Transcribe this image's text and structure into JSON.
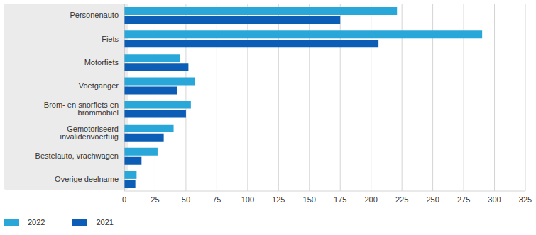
{
  "chart_data": {
    "type": "bar",
    "orientation": "horizontal",
    "categories": [
      "Personenauto",
      "Fiets",
      "Motorfiets",
      "Voetganger",
      "Brom- en snorfiets en brommobiel",
      "Gemotoriseerd invalidenvoertuig",
      "Bestelauto, vrachwagen",
      "Overige deelname"
    ],
    "series": [
      {
        "name": "2022",
        "color": "#2aa7d9",
        "values": [
          221,
          290,
          45,
          57,
          54,
          40,
          27,
          10
        ]
      },
      {
        "name": "2021",
        "color": "#0b5db5",
        "values": [
          175,
          206,
          52,
          43,
          50,
          32,
          14,
          9
        ]
      }
    ],
    "xlim": [
      0,
      325
    ],
    "xticks": [
      0,
      25,
      50,
      75,
      100,
      125,
      150,
      175,
      200,
      225,
      250,
      275,
      300,
      325
    ],
    "grid": true,
    "legend": "bottom-left"
  }
}
